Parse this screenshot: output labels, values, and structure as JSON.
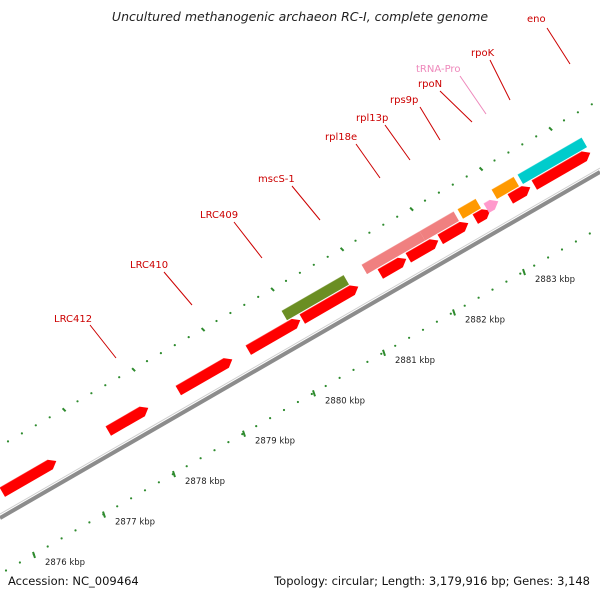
{
  "title": "Uncultured methanogenic archaeon RC-I, complete genome",
  "footer": {
    "accession": "Accession: NC_009464",
    "summary": "Topology: circular; Length: 3,179,916 bp; Genes: 3,148"
  },
  "scale": {
    "ticks": [
      "2876 kbp",
      "2877 kbp",
      "2878 kbp",
      "2879 kbp",
      "2880 kbp",
      "2881 kbp",
      "2882 kbp",
      "2883 kbp"
    ]
  },
  "colors": {
    "backbone": "#8c8c8c",
    "tick": "#2e8b2e",
    "gene_red": "#ff0000",
    "gene_pink": "#f08080",
    "gene_olive": "#6b8e23",
    "gene_orange": "#ff9900",
    "gene_cyan": "#00cccc",
    "trna": "#ff99cc",
    "label_red": "#cc0000",
    "label_trna": "#ee88bb"
  },
  "genes": [
    {
      "label": "LRC412",
      "type": "gene"
    },
    {
      "label": "LRC410",
      "type": "gene"
    },
    {
      "label": "LRC409",
      "type": "gene"
    },
    {
      "label": "mscS-1",
      "type": "gene"
    },
    {
      "label": "rpl18e",
      "type": "gene"
    },
    {
      "label": "rpl13p",
      "type": "gene"
    },
    {
      "label": "rps9p",
      "type": "gene"
    },
    {
      "label": "rpoN",
      "type": "gene"
    },
    {
      "label": "tRNA-Pro",
      "type": "trna"
    },
    {
      "label": "rpoK",
      "type": "gene"
    },
    {
      "label": "eno",
      "type": "gene"
    }
  ]
}
